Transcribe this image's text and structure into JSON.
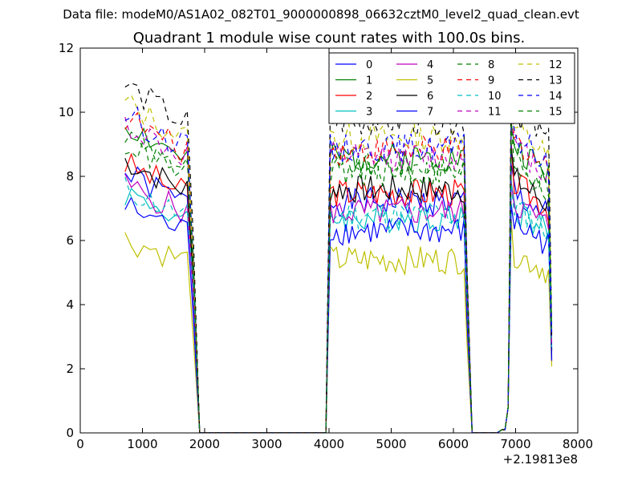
{
  "chart_data": {
    "type": "line",
    "suptitle": "Data file: modeM0/AS1A02_082T01_9000000898_06632cztM0_level2_quad_clean.evt",
    "title": "Quadrant 1 module wise count rates with 100.0s bins.",
    "xlabel": "",
    "ylabel": "",
    "x_offset_label": "+2.19813e8",
    "xlim": [
      0,
      8000
    ],
    "ylim": [
      0,
      12
    ],
    "xticks": [
      0,
      1000,
      2000,
      3000,
      4000,
      5000,
      6000,
      7000,
      8000
    ],
    "xtick_labels": [
      "0",
      "1000",
      "2000",
      "3000",
      "4000",
      "5000",
      "6000",
      "7000",
      "8000"
    ],
    "yticks": [
      0,
      2,
      4,
      6,
      8,
      10,
      12
    ],
    "ytick_labels": [
      "0",
      "2",
      "4",
      "6",
      "8",
      "10",
      "12"
    ],
    "legend_position": "top-right",
    "segments": [
      {
        "start": 720,
        "step": 100,
        "count": 11
      },
      {
        "start": 1820,
        "step": 100,
        "count": 2
      },
      {
        "start": 2000,
        "step": 100,
        "count": 19
      },
      {
        "start": 3950,
        "step": 100,
        "count": 1
      },
      {
        "start": 4020,
        "step": 50,
        "count": 45
      },
      {
        "start": 6300,
        "step": 100,
        "count": 5
      },
      {
        "start": 6780,
        "step": 50,
        "count": 17
      }
    ],
    "series": [
      {
        "name": "0",
        "color": "#0000ff",
        "dashed": false,
        "baseline": 7.2,
        "seed": 1
      },
      {
        "name": "1",
        "color": "#008000",
        "dashed": false,
        "baseline": 8.6,
        "seed": 2
      },
      {
        "name": "2",
        "color": "#ff0000",
        "dashed": false,
        "baseline": 7.5,
        "seed": 3
      },
      {
        "name": "3",
        "color": "#00bfbf",
        "dashed": false,
        "baseline": 6.7,
        "seed": 4
      },
      {
        "name": "4",
        "color": "#bf00bf",
        "dashed": false,
        "baseline": 6.9,
        "seed": 5
      },
      {
        "name": "5",
        "color": "#bfbf00",
        "dashed": false,
        "baseline": 5.4,
        "seed": 6
      },
      {
        "name": "6",
        "color": "#000000",
        "dashed": false,
        "baseline": 7.6,
        "seed": 7
      },
      {
        "name": "7",
        "color": "#0000ff",
        "dashed": false,
        "baseline": 6.3,
        "seed": 8
      },
      {
        "name": "8",
        "color": "#008000",
        "dashed": true,
        "baseline": 8.3,
        "seed": 9
      },
      {
        "name": "9",
        "color": "#ff0000",
        "dashed": true,
        "baseline": 8.8,
        "seed": 10
      },
      {
        "name": "10",
        "color": "#00bfbf",
        "dashed": true,
        "baseline": 6.8,
        "seed": 11
      },
      {
        "name": "11",
        "color": "#bf00bf",
        "dashed": true,
        "baseline": 8.6,
        "seed": 12
      },
      {
        "name": "12",
        "color": "#bfbf00",
        "dashed": true,
        "baseline": 9.2,
        "seed": 13
      },
      {
        "name": "13",
        "color": "#000000",
        "dashed": true,
        "baseline": 9.7,
        "seed": 14
      },
      {
        "name": "14",
        "color": "#0000ff",
        "dashed": true,
        "baseline": 8.9,
        "seed": 15
      },
      {
        "name": "15",
        "color": "#008000",
        "dashed": true,
        "baseline": 8.1,
        "seed": 16
      }
    ]
  }
}
